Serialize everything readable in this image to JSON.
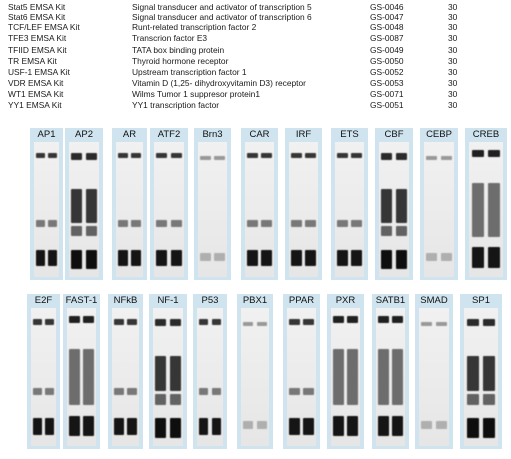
{
  "product_table": {
    "rows": [
      {
        "kit": "Stat5 EMSA Kit",
        "description": "Signal transducer and activator of transcription 5",
        "code": "GS-0046",
        "quantity": "30"
      },
      {
        "kit": "Stat6 EMSA Kit",
        "description": "Signal transducer and activator of transcription 6",
        "code": "GS-0047",
        "quantity": "30"
      },
      {
        "kit": "TCF/LEF EMSA Kit",
        "description": "Runt-related transcription factor 2",
        "code": "GS-0048",
        "quantity": "30"
      },
      {
        "kit": "TFE3 EMSA Kit",
        "description": "Transcrion factor E3",
        "code": "GS-0087",
        "quantity": "30"
      },
      {
        "kit": "TFIID EMSA Kit",
        "description": "TATA box binding protein",
        "code": "GS-0049",
        "quantity": "30"
      },
      {
        "kit": "TR EMSA Kit",
        "description": "Thyroid hormone receptor",
        "code": "GS-0050",
        "quantity": "30"
      },
      {
        "kit": "USF-1 EMSA Kit",
        "description": "Upstream transcription factor 1",
        "code": "GS-0052",
        "quantity": "30"
      },
      {
        "kit": "VDR EMSA Kit",
        "description": "Vitamin D (1,25- dihydroxyvitamin D3) receptor",
        "code": "GS-0053",
        "quantity": "30"
      },
      {
        "kit": "WT1 EMSA Kit",
        "description": "Wilms Tumor 1 suppresor protein1",
        "code": "GS-0071",
        "quantity": "30"
      },
      {
        "kit": "YY1 EMSA Kit",
        "description": "YY1 transcription factor",
        "code": "GS-0051",
        "quantity": "30"
      }
    ]
  },
  "gel_panels": {
    "row1": [
      "AP1",
      "AP2",
      "AR",
      "ATF2",
      "Brn3",
      "CAR",
      "IRF",
      "ETS",
      "CBF",
      "CEBP",
      "CREB"
    ],
    "row2": [
      "E2F",
      "FAST-1",
      "NFkB",
      "NF-1",
      "P53",
      "PBX1",
      "PPAR",
      "PXR",
      "SATB1",
      "SMAD",
      "SP1"
    ]
  },
  "colors": {
    "panel_background": "#cfe4ef",
    "text": "#1a1a1a"
  }
}
